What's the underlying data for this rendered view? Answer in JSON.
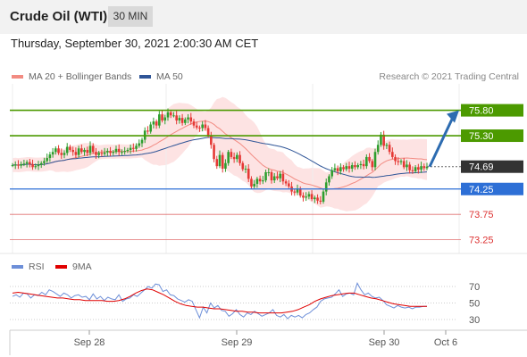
{
  "header": {
    "title": "Crude Oil (WTI)",
    "timeframe": "30 MIN"
  },
  "datetime": "Thursday, September 30, 2021 2:00:30 AM CET",
  "legend": {
    "ma20": {
      "label": "MA 20 + Bollinger Bands",
      "color": "#f28b82"
    },
    "ma50": {
      "label": "MA 50",
      "color": "#2f5597"
    }
  },
  "copyright": "Research © 2021 Trading Central",
  "rsi_legend": {
    "rsi": {
      "label": "RSI",
      "color": "#6d8fd8"
    },
    "ma9": {
      "label": "9MA",
      "color": "#e00000"
    }
  },
  "colors": {
    "up": "#2e9e2e",
    "down": "#e53935",
    "resistance": "#4c9a00",
    "support": "#2d6fd6",
    "target_line": "#e07070",
    "current": "#333333",
    "arrow": "#2c6bb0",
    "bollinger_fill": "#fde3e3"
  },
  "chart_data": [
    {
      "type": "candlestick",
      "title": "Crude Oil (WTI)",
      "timeframe": "30 MIN",
      "x_ticks": [
        "Sep 28",
        "Sep 29",
        "Sep 30",
        "Oct 6"
      ],
      "ylim": [
        73.05,
        76.25
      ],
      "close_series_approx": [
        74.72,
        74.73,
        74.71,
        74.74,
        74.75,
        74.78,
        74.74,
        74.68,
        74.7,
        74.73,
        74.76,
        74.8,
        74.86,
        74.93,
        74.98,
        75.05,
        74.96,
        74.92,
        74.96,
        75.08,
        75.02,
        74.98,
        74.92,
        75.05,
        74.98,
        75.02,
        74.96,
        75.1,
        74.98,
        74.92,
        74.96,
        74.94,
        74.97,
        75.0,
        74.96,
        74.98,
        75.04,
        74.98,
        74.98,
        75.0,
        75.02,
        75.06,
        75.04,
        75.1,
        75.15,
        75.22,
        75.4,
        75.38,
        75.52,
        75.58,
        75.5,
        75.72,
        75.6,
        75.66,
        75.76,
        75.7,
        75.7,
        75.6,
        75.65,
        75.55,
        75.62,
        75.66,
        75.58,
        75.5,
        75.46,
        75.45,
        75.52,
        75.45,
        75.3,
        75.12,
        74.84,
        74.7,
        74.92,
        74.65,
        74.76,
        74.98,
        74.88,
        74.84,
        74.92,
        74.76,
        74.64,
        74.65,
        74.45,
        74.3,
        74.35,
        74.45,
        74.4,
        74.42,
        74.58,
        74.58,
        74.42,
        74.5,
        74.46,
        74.55,
        74.4,
        74.36,
        74.3,
        74.2,
        74.18,
        74.26,
        74.12,
        74.08,
        74.1,
        74.15,
        74.05,
        74.08,
        74.02,
        74.0,
        74.2,
        74.38,
        74.5,
        74.62,
        74.66,
        74.6,
        74.68,
        74.64,
        74.7,
        74.65,
        74.72,
        74.68,
        74.72,
        74.74,
        74.7,
        74.88,
        74.8,
        74.68,
        74.98,
        75.12,
        75.32,
        75.1,
        75.12,
        74.98,
        74.88,
        74.8,
        74.78,
        74.8,
        74.68,
        74.73,
        74.62,
        74.6,
        74.68,
        74.63,
        74.7,
        74.66,
        74.69
      ],
      "levels": {
        "resistance": [
          75.8,
          75.3
        ],
        "current": 74.69,
        "support": [
          74.25
        ],
        "targets": [
          73.75,
          73.25
        ]
      },
      "series": [
        {
          "name": "MA 20 + Bollinger Bands"
        },
        {
          "name": "MA 50"
        }
      ]
    },
    {
      "type": "line",
      "title": "",
      "ylabel": "",
      "y_ticks": [
        70,
        50,
        30
      ],
      "series": [
        {
          "name": "RSI",
          "values_approx": [
            58,
            60,
            57,
            62,
            61,
            56,
            60,
            59,
            63,
            60,
            66,
            64,
            61,
            58,
            62,
            60,
            56,
            59,
            60,
            57,
            58,
            54,
            61,
            55,
            58,
            53,
            57,
            55,
            54,
            60,
            52,
            55,
            56,
            60,
            58,
            62,
            66,
            70,
            68,
            73,
            72,
            64,
            66,
            60,
            59,
            55,
            53,
            51,
            54,
            52,
            42,
            32,
            45,
            38,
            50,
            44,
            47,
            41,
            40,
            34,
            37,
            42,
            36,
            33,
            38,
            36,
            40,
            37,
            34,
            36,
            38,
            42,
            35,
            33,
            36,
            31,
            35,
            33,
            35,
            32,
            36,
            38,
            42,
            45,
            52,
            55,
            56,
            57,
            61,
            66,
            58,
            61,
            62,
            60,
            74,
            66,
            60,
            62,
            58,
            56,
            57,
            53,
            48,
            46,
            44,
            47,
            45,
            44,
            45,
            43,
            45,
            45,
            46,
            46
          ]
        },
        {
          "name": "9MA",
          "values_approx": [
            62,
            63,
            62,
            61,
            60,
            59,
            58,
            57,
            56,
            56,
            55,
            54,
            54,
            53,
            53,
            53,
            53,
            52,
            52,
            53,
            55,
            58,
            62,
            65,
            67,
            66,
            63,
            60,
            56,
            52,
            49,
            47,
            46,
            45,
            45,
            44,
            43,
            43,
            42,
            41,
            40,
            40,
            39,
            39,
            38,
            38,
            38,
            38,
            38,
            39,
            40,
            42,
            45,
            48,
            52,
            55,
            57,
            59,
            60,
            61,
            62,
            62,
            60,
            58,
            56,
            55,
            53,
            51,
            49,
            48,
            47,
            46,
            46,
            46,
            46
          ]
        }
      ]
    }
  ]
}
